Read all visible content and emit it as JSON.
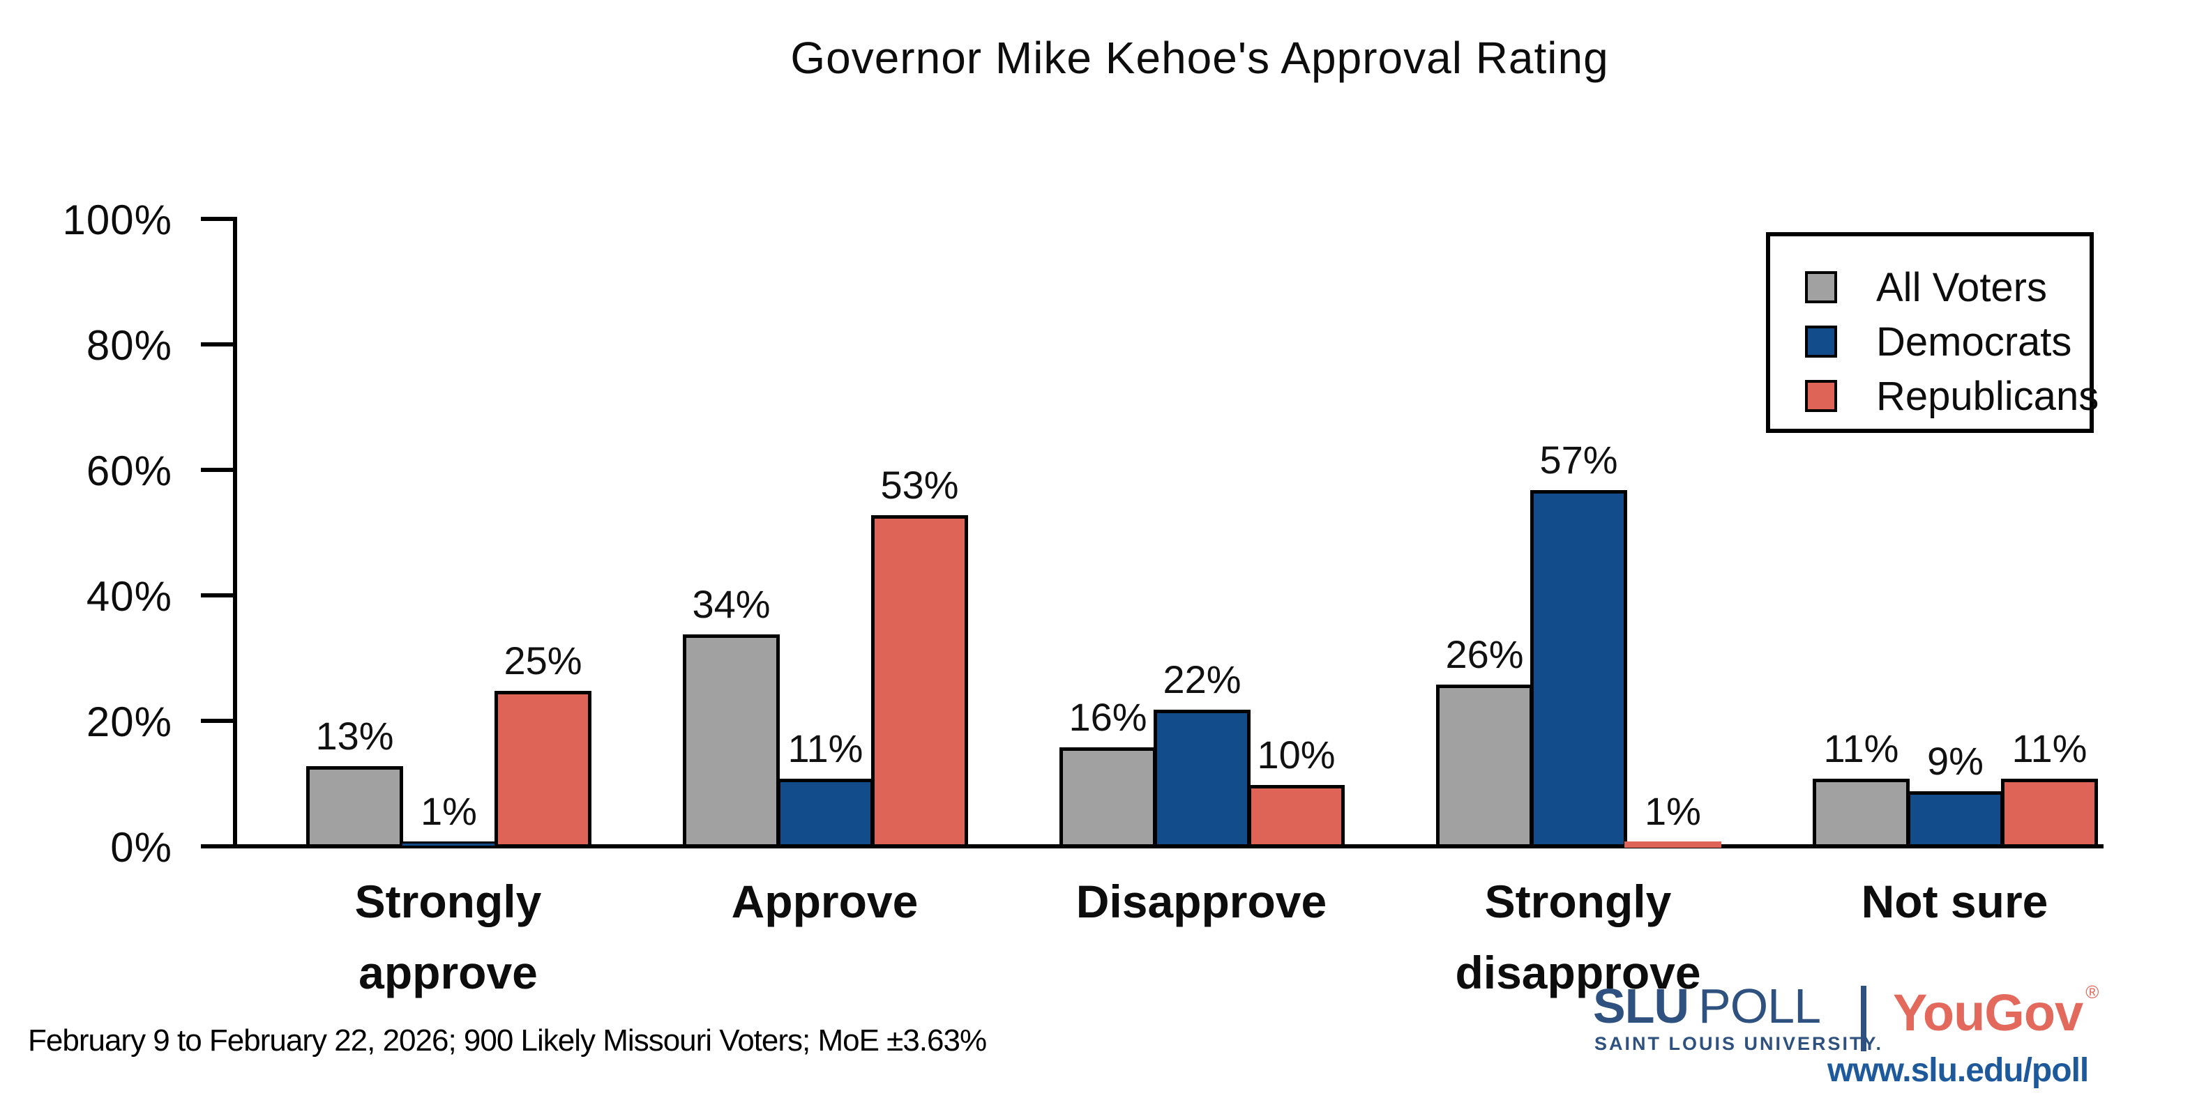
{
  "title": "Governor Mike Kehoe's Approval Rating",
  "footer": {
    "text": "February 9 to February 22, 2026; 900 Likely Missouri Voters; MoE ±3.63%"
  },
  "legend": {
    "items": [
      {
        "label": "All Voters",
        "color": "#a1a1a1"
      },
      {
        "label": "Democrats",
        "color": "#134c8b"
      },
      {
        "label": "Republicans",
        "color": "#dd6457"
      }
    ]
  },
  "branding": {
    "slu": "SLU",
    "poll": "POLL",
    "subtitle": "SAINT LOUIS UNIVERSITY.",
    "yougov": "YouGov",
    "registered": "®",
    "url": "www.slu.edu/poll",
    "slu_color": "#2e517f",
    "yougov_color": "#e2695c"
  },
  "chart_data": {
    "type": "bar",
    "title": "Governor Mike Kehoe's Approval Rating",
    "categories": [
      "Strongly approve",
      "Approve",
      "Disapprove",
      "Strongly disapprove",
      "Not sure"
    ],
    "category_lines": [
      [
        "Strongly",
        "approve"
      ],
      [
        "Approve"
      ],
      [
        "Disapprove"
      ],
      [
        "Strongly",
        "disapprove"
      ],
      [
        "Not sure"
      ]
    ],
    "series": [
      {
        "name": "All Voters",
        "color": "#a1a1a1",
        "values": [
          13,
          34,
          16,
          26,
          11
        ]
      },
      {
        "name": "Democrats",
        "color": "#134c8b",
        "values": [
          1,
          11,
          22,
          57,
          9
        ]
      },
      {
        "name": "Republicans",
        "color": "#dd6457",
        "values": [
          25,
          53,
          10,
          1,
          11
        ]
      }
    ],
    "value_label_suffix": "%",
    "xlabel": "",
    "ylabel": "",
    "ylim": [
      0,
      100
    ],
    "y_ticks": [
      "0%",
      "20%",
      "40%",
      "60%",
      "80%",
      "100%"
    ],
    "grid": false,
    "legend_position": "upper right",
    "bar_edge_color": "#000000"
  }
}
